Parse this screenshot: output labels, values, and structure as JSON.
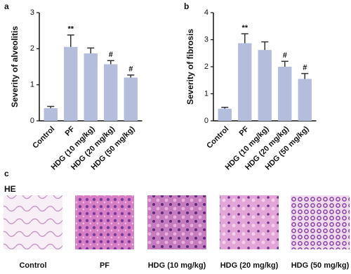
{
  "chart_data": [
    {
      "type": "bar",
      "panel_label": "a",
      "y_label": "Severity of alveolitis",
      "categories": [
        "Control",
        "PF",
        "HDG (10 mg/kg)",
        "HDG (20 mg/kg)",
        "HDG (50 mg/kg)"
      ],
      "values": [
        0.35,
        2.05,
        1.87,
        1.57,
        1.2
      ],
      "errors": [
        0.05,
        0.33,
        0.15,
        0.1,
        0.07
      ],
      "significance": [
        null,
        "**",
        null,
        "#",
        "#"
      ],
      "color": "#b5bddd",
      "ylim": [
        0,
        3
      ],
      "yticks": [
        0,
        1,
        2,
        3
      ],
      "grid": false
    },
    {
      "type": "bar",
      "panel_label": "b",
      "y_label": "Severity of fibrosis",
      "categories": [
        "Control",
        "PF",
        "HDG (10 mg/kg)",
        "HDG (20 mg/kg)",
        "HDG (50 mg/kg)"
      ],
      "values": [
        0.45,
        2.87,
        2.62,
        2.0,
        1.55
      ],
      "errors": [
        0.05,
        0.35,
        0.3,
        0.2,
        0.2
      ],
      "significance": [
        null,
        "**",
        null,
        "#",
        "#"
      ],
      "color": "#b5bddd",
      "ylim": [
        0,
        4
      ],
      "yticks": [
        0,
        1,
        2,
        3,
        4
      ],
      "grid": false
    }
  ],
  "panel_c": {
    "panel_label": "c",
    "stain": "HE",
    "images": [
      "Control",
      "PF",
      "HDG (10 mg/kg)",
      "HDG (20 mg/kg)",
      "HDG (50 mg/kg)"
    ]
  }
}
